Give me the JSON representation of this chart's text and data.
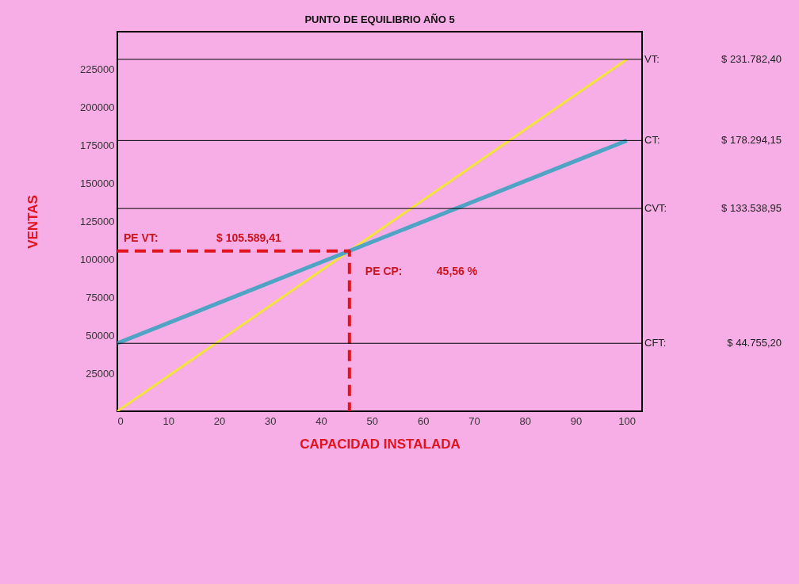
{
  "chart_data": {
    "type": "line",
    "title": "PUNTO DE EQUILIBRIO AÑO 5",
    "xlabel": "CAPACIDAD INSTALADA",
    "ylabel": "VENTAS",
    "xlim": [
      0,
      103
    ],
    "ylim": [
      0,
      250000
    ],
    "xticks": [
      0,
      10,
      20,
      30,
      40,
      50,
      60,
      70,
      80,
      90,
      100
    ],
    "yticks": [
      25000,
      50000,
      75000,
      100000,
      125000,
      150000,
      175000,
      200000,
      225000
    ],
    "grid": false,
    "marker": "none",
    "line_style": "solid",
    "series": [
      {
        "color": "#f2e43a",
        "x": [
          0,
          100
        ],
        "values": [
          0,
          231782.4
        ]
      },
      {
        "color": "#4fa3c4",
        "x": [
          0,
          100
        ],
        "values": [
          44755.2,
          178294.15
        ]
      },
      {
        "color": "#e0141e",
        "x": [
          0,
          45.56,
          45.56
        ],
        "values": [
          105589.41,
          105589.41,
          0
        ],
        "line_style": "dashed"
      }
    ],
    "ref_lines": [
      {
        "axis": "y",
        "value": 231782.4,
        "label": "VT:"
      },
      {
        "axis": "y",
        "value": 178294.15,
        "label": "CT:"
      },
      {
        "axis": "y",
        "value": 133538.95,
        "label": "CVT:"
      },
      {
        "axis": "y",
        "value": 44755.2,
        "label": "CFT:"
      }
    ],
    "annotations": [
      "$ 231.782,40",
      "$ 178.294,15",
      "$ 133.538,95",
      "$ 44.755,20",
      "PE VT:",
      "$ 105.589,41",
      "PE CP:",
      "45,56   %"
    ]
  }
}
